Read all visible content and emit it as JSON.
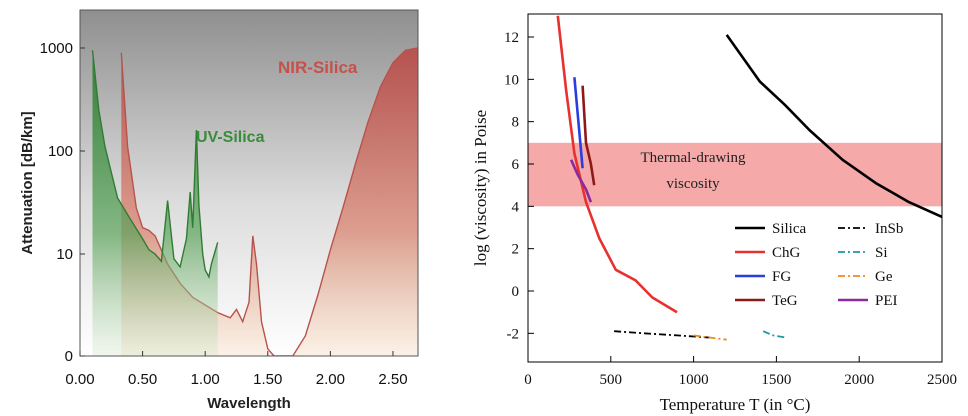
{
  "chart_data": [
    {
      "type": "area",
      "xlabel": "Wavelength",
      "ylabel": "Attenuation [dB/km]",
      "x_ticks": [
        "0.00",
        "0.50",
        "1.00",
        "1.50",
        "2.00",
        "2.50"
      ],
      "y_ticks": [
        "1000",
        "100",
        "10",
        "0"
      ],
      "xlim": [
        0,
        2.7
      ],
      "ylim": [
        0,
        1000
      ],
      "y_scale": "log",
      "series": [
        {
          "name": "NIR-Silica",
          "color": "#c0504d",
          "x": [
            0.33,
            0.38,
            0.45,
            0.5,
            0.55,
            0.6,
            0.7,
            0.8,
            0.9,
            1.0,
            1.1,
            1.2,
            1.25,
            1.3,
            1.35,
            1.38,
            1.41,
            1.45,
            1.5,
            1.55,
            1.6,
            1.7,
            1.8,
            1.9,
            2.0,
            2.1,
            2.2,
            2.3,
            2.4,
            2.5,
            2.6,
            2.7
          ],
          "y": [
            900,
            110,
            28,
            18,
            17,
            15,
            8,
            5.2,
            3.8,
            3.2,
            2.7,
            2.4,
            2.9,
            2.2,
            3.4,
            15,
            8,
            2.2,
            1.2,
            0.8,
            0.7,
            0.9,
            1.6,
            4,
            11,
            28,
            75,
            190,
            420,
            720,
            950,
            1000
          ]
        },
        {
          "name": "UV-Silica",
          "color": "#3a8c3a",
          "x": [
            0.1,
            0.15,
            0.2,
            0.3,
            0.4,
            0.5,
            0.55,
            0.6,
            0.65,
            0.7,
            0.75,
            0.8,
            0.85,
            0.88,
            0.9,
            0.93,
            0.95,
            0.98,
            1.0,
            1.03,
            1.05,
            1.1
          ],
          "y": [
            950,
            250,
            110,
            35,
            22,
            14,
            11,
            10,
            8.5,
            33,
            9,
            7.5,
            14,
            40,
            18,
            160,
            30,
            10,
            7,
            6,
            8,
            13
          ]
        }
      ],
      "annotations": [
        "NIR-Silica",
        "UV-Silica"
      ],
      "grid": false,
      "legend": "none"
    },
    {
      "type": "line",
      "xlabel": "Temperature T (in °C)",
      "ylabel": "log (viscosity) in Poise",
      "x_ticks": [
        "0",
        "500",
        "1000",
        "1500",
        "2000",
        "2500"
      ],
      "y_ticks": [
        "-2",
        "0",
        "2",
        "4",
        "6",
        "8",
        "10",
        "12"
      ],
      "xlim": [
        0,
        2500
      ],
      "ylim": [
        -3,
        13
      ],
      "band": {
        "y0": 4,
        "y1": 7,
        "label_line1": "Thermal-drawing",
        "label_line2": "viscosity",
        "color": "#f4a0a0"
      },
      "series": [
        {
          "name": "Silica",
          "color": "#000000",
          "dash": "solid",
          "x": [
            1200,
            1300,
            1400,
            1550,
            1700,
            1900,
            2100,
            2300,
            2500
          ],
          "y": [
            12.1,
            11.0,
            9.9,
            8.8,
            7.6,
            6.2,
            5.1,
            4.2,
            3.5
          ]
        },
        {
          "name": "ChG",
          "color": "#e8302e",
          "dash": "solid",
          "x": [
            180,
            230,
            280,
            350,
            430,
            530,
            650,
            750,
            900
          ],
          "y": [
            13,
            9.5,
            6.5,
            4.2,
            2.5,
            1.0,
            0.5,
            -0.3,
            -1.0
          ]
        },
        {
          "name": "FG",
          "color": "#2a3ee0",
          "dash": "solid",
          "x": [
            280,
            330
          ],
          "y": [
            10.1,
            5.8
          ]
        },
        {
          "name": "TeG",
          "color": "#8b1a1a",
          "dash": "solid",
          "x": [
            330,
            350,
            380,
            400
          ],
          "y": [
            9.7,
            7.0,
            6.0,
            5.0
          ]
        },
        {
          "name": "InSb",
          "color": "#000000",
          "dash": "dashdot",
          "x": [
            520,
            700,
            900,
            1100
          ],
          "y": [
            -1.9,
            -2.0,
            -2.1,
            -2.2
          ]
        },
        {
          "name": "Si",
          "color": "#1a9aa0",
          "dash": "dashdot",
          "x": [
            1420,
            1480,
            1560
          ],
          "y": [
            -1.9,
            -2.1,
            -2.2
          ]
        },
        {
          "name": "Ge",
          "color": "#f08a1e",
          "dash": "dashdot",
          "x": [
            1000,
            1100,
            1200
          ],
          "y": [
            -2.1,
            -2.2,
            -2.3
          ]
        },
        {
          "name": "PEI",
          "color": "#8b2aa0",
          "dash": "solid",
          "x": [
            260,
            300,
            350,
            380
          ],
          "y": [
            6.2,
            5.5,
            4.8,
            4.2
          ]
        }
      ],
      "grid": false,
      "legend": "bottom-right"
    }
  ]
}
